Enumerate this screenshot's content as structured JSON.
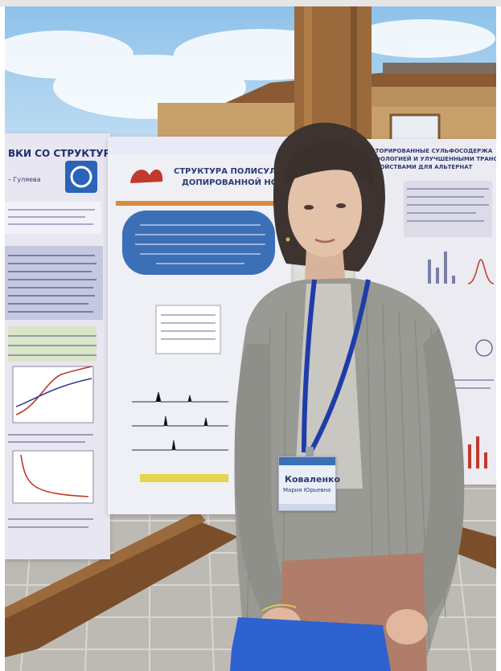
{
  "scene": {
    "colors": {
      "sky": "#9cc8ec",
      "poster_blue": "#3b6fb6",
      "poster_panel": "#dce3ef",
      "lanyard": "#1f3da8",
      "cardigan": "#9a9a94",
      "paving": "#bdbab4",
      "wood": "#8a5a34"
    },
    "left_poster": {
      "heading": "ВКИ СО СТРУКТУРОЙ",
      "author": "– Гуляева"
    },
    "center_poster": {
      "heading_line1": "СТРУКТУРА ПОЛИСУЛЬФИ",
      "heading_line2": "ДОПИРОВАННОЙ НОВА"
    },
    "right_poster": {
      "heading_line1": "ПЕРФТОРИРОВАННЫЕ СУЛЬФОСОДЕРЖА",
      "heading_line2": "МОРФОЛОГИЕЙ И УЛУЧШЕННЫМИ ТРАНС",
      "heading_line3": "СВОЙСТВАМИ ДЛЯ АЛЬТЕРНАТ"
    },
    "badge": {
      "name_line1": "Коваленко",
      "name_line2": "Мария Юрьевна"
    }
  }
}
